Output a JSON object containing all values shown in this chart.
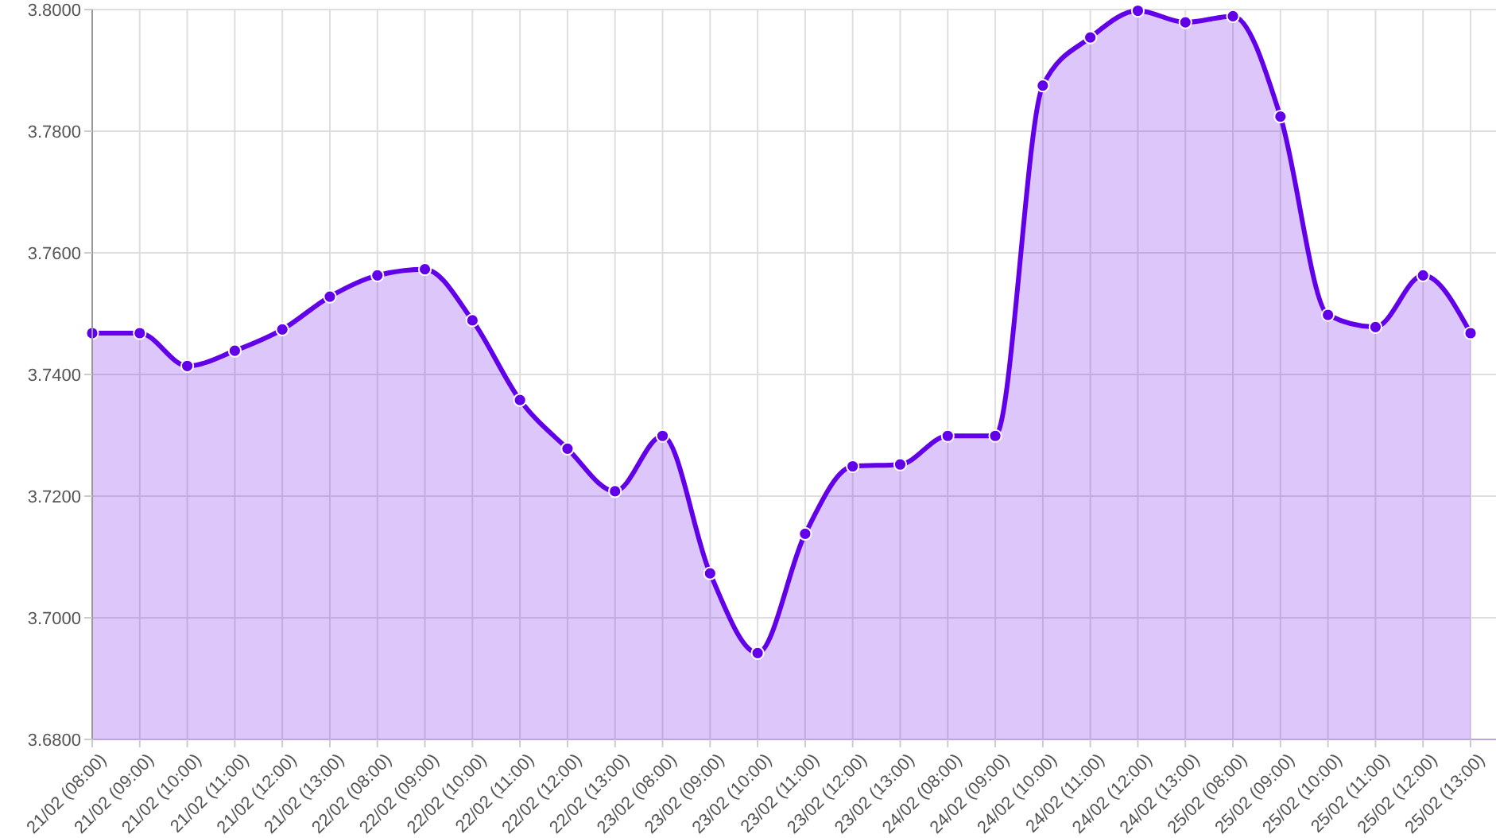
{
  "chart_data": {
    "type": "area",
    "categories": [
      "21/02 (08:00)",
      "21/02 (09:00)",
      "21/02 (10:00)",
      "21/02 (11:00)",
      "21/02 (12:00)",
      "21/02 (13:00)",
      "22/02 (08:00)",
      "22/02 (09:00)",
      "22/02 (10:00)",
      "22/02 (11:00)",
      "22/02 (12:00)",
      "22/02 (13:00)",
      "23/02 (08:00)",
      "23/02 (09:00)",
      "23/02 (10:00)",
      "23/02 (11:00)",
      "23/02 (12:00)",
      "23/02 (13:00)",
      "24/02 (08:00)",
      "24/02 (09:00)",
      "24/02 (10:00)",
      "24/02 (11:00)",
      "24/02 (12:00)",
      "24/02 (13:00)",
      "25/02 (08:00)",
      "25/02 (09:00)",
      "25/02 (10:00)",
      "25/02 (11:00)",
      "25/02 (12:00)",
      "25/02 (13:00)"
    ],
    "series": [
      {
        "color": "#6200ea",
        "values": [
          3.7468,
          3.7468,
          3.7414,
          3.7439,
          3.7474,
          3.7528,
          3.7563,
          3.7573,
          3.7489,
          3.7358,
          3.7278,
          3.7208,
          3.7299,
          3.7073,
          3.6942,
          3.7138,
          3.7249,
          3.7252,
          3.7299,
          3.7299,
          3.7875,
          3.7954,
          3.7998,
          3.7979,
          3.7989,
          3.7824,
          3.7498,
          3.7478,
          3.7563,
          3.7468
        ]
      }
    ],
    "ylim": [
      3.68,
      3.8
    ],
    "yticks": [
      {
        "value": 3.68,
        "label": "3.6800"
      },
      {
        "value": 3.7,
        "label": "3.7000"
      },
      {
        "value": 3.72,
        "label": "3.7200"
      },
      {
        "value": 3.74,
        "label": "3.7400"
      },
      {
        "value": 3.76,
        "label": "3.7600"
      },
      {
        "value": 3.78,
        "label": "3.7800"
      },
      {
        "value": 3.8,
        "label": "3.8000"
      }
    ],
    "grid": true,
    "marker": "circle",
    "line_style": "solid"
  }
}
